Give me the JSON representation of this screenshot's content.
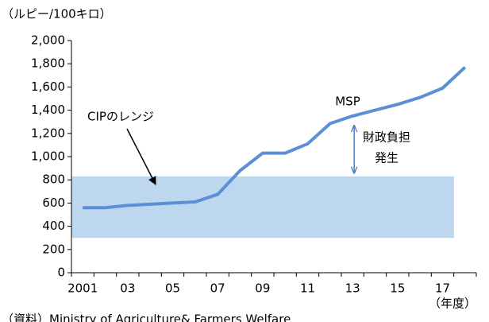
{
  "chart_data": {
    "type": "line",
    "y_axis_label": "（ルピー/100キロ）",
    "x_axis_label": "（年度）",
    "source": "（資料）Ministry of Agriculture& Farmers Welfare",
    "categories": [
      "2001",
      null,
      "03",
      null,
      "05",
      null,
      "07",
      null,
      "09",
      null,
      "11",
      null,
      "13",
      null,
      "15",
      null,
      "17",
      null
    ],
    "series": [
      {
        "name": "MSP",
        "color": "#5b8fd6",
        "values": [
          560,
          560,
          580,
          590,
          600,
          610,
          675,
          880,
          1030,
          1030,
          1110,
          1285,
          1350,
          1400,
          1450,
          1510,
          1590,
          1770
        ]
      }
    ],
    "range_band": {
      "label": "CIPのレンジ",
      "low": 300,
      "high": 830,
      "color": "#bdd7ee"
    },
    "gap_annotation": [
      "財政負担",
      "発生"
    ],
    "ylim": [
      0,
      2000
    ],
    "yticks": [
      0,
      200,
      400,
      600,
      800,
      {
        "value": 1000,
        "label": "1,000"
      },
      {
        "value": 1200,
        "label": "1,200"
      },
      {
        "value": 1400,
        "label": "1,400"
      },
      {
        "value": 1600,
        "label": "1,600"
      },
      {
        "value": 1800,
        "label": "1,800"
      },
      {
        "value": 2000,
        "label": "2,000"
      }
    ]
  }
}
